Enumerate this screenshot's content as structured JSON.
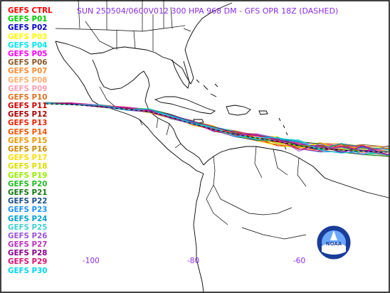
{
  "title": "SUN 250504/0600V012  300 HPA 968 DM - GFS OPR 18Z (DASHED)",
  "legend": [
    {
      "label": "GEFS CTRL",
      "color": "#ff0000"
    },
    {
      "label": "GEFS P01",
      "color": "#00cc00"
    },
    {
      "label": "GEFS P02",
      "color": "#0000cc"
    },
    {
      "label": "GEFS P03",
      "color": "#ffff00"
    },
    {
      "label": "GEFS P04",
      "color": "#00e5ee"
    },
    {
      "label": "GEFS P05",
      "color": "#ff00ff"
    },
    {
      "label": "GEFS P06",
      "color": "#8b5a2b"
    },
    {
      "label": "GEFS P07",
      "color": "#ff8c32"
    },
    {
      "label": "GEFS P08",
      "color": "#ffb070"
    },
    {
      "label": "GEFS P09",
      "color": "#ffa0b4"
    },
    {
      "label": "GEFS P10",
      "color": "#e07020"
    },
    {
      "label": "GEFS P11",
      "color": "#cc0000"
    },
    {
      "label": "GEFS P12",
      "color": "#aa0000"
    },
    {
      "label": "GEFS P13",
      "color": "#ee2200"
    },
    {
      "label": "GEFS P14",
      "color": "#ff5500"
    },
    {
      "label": "GEFS P15",
      "color": "#ee9900"
    },
    {
      "label": "GEFS P16",
      "color": "#cc8800"
    },
    {
      "label": "GEFS P17",
      "color": "#ffdd00"
    },
    {
      "label": "GEFS P18",
      "color": "#dddd00"
    },
    {
      "label": "GEFS P19",
      "color": "#99ee00"
    },
    {
      "label": "GEFS P20",
      "color": "#22bb22"
    },
    {
      "label": "GEFS P21",
      "color": "#117711"
    },
    {
      "label": "GEFS P22",
      "color": "#1a4f8a"
    },
    {
      "label": "GEFS P23",
      "color": "#1e90ff"
    },
    {
      "label": "GEFS P24",
      "color": "#00a0d0"
    },
    {
      "label": "GEFS P25",
      "color": "#40d0d0"
    },
    {
      "label": "GEFS P26",
      "color": "#9955dd"
    },
    {
      "label": "GEFS P27",
      "color": "#bb33bb"
    },
    {
      "label": "GEFS P28",
      "color": "#880088"
    },
    {
      "label": "GEFS P29",
      "color": "#dd1177"
    },
    {
      "label": "GEFS P30",
      "color": "#00d5ee"
    }
  ],
  "longitude_labels": [
    "-100",
    "-80",
    "-60"
  ],
  "logo_text": "NOAA",
  "colors": {
    "title": "#8a2be2",
    "coast": "#000000",
    "background": "#ffffff",
    "frame": "#000000",
    "opr_line": "#000000"
  }
}
